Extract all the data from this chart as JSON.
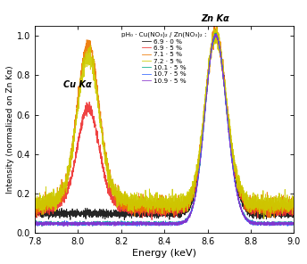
{
  "title": "",
  "xlabel": "Energy (keV)",
  "ylabel": "Intensity (normalized on Zn Kα)",
  "xlim": [
    7.8,
    9.0
  ],
  "ylim": [
    0.0,
    1.05
  ],
  "yticks": [
    0.0,
    0.2,
    0.4,
    0.6,
    0.8,
    1.0
  ],
  "xticks": [
    7.8,
    8.0,
    8.2,
    8.4,
    8.6,
    8.8,
    9.0
  ],
  "legend_title": "pH₀ · Cu(NO₃)₂ / Zn(NO₃)₂ :",
  "series": [
    {
      "label": "6.9 · 0 %",
      "color": "#111111"
    },
    {
      "label": "6.9 · 5 %",
      "color": "#ee3333"
    },
    {
      "label": "7.1 · 5 %",
      "color": "#ee7700"
    },
    {
      "label": "7.2 · 5 %",
      "color": "#cccc00"
    },
    {
      "label": "10.1 · 5 %",
      "color": "#00aa88"
    },
    {
      "label": "10.7 · 5 %",
      "color": "#3366ff"
    },
    {
      "label": "10.9 · 5 %",
      "color": "#8833cc"
    }
  ],
  "cu_ka_label": "Cu Kα",
  "zn_ka_label": "Zn Kα",
  "background_color": "#ffffff",
  "noise_seed": 42
}
